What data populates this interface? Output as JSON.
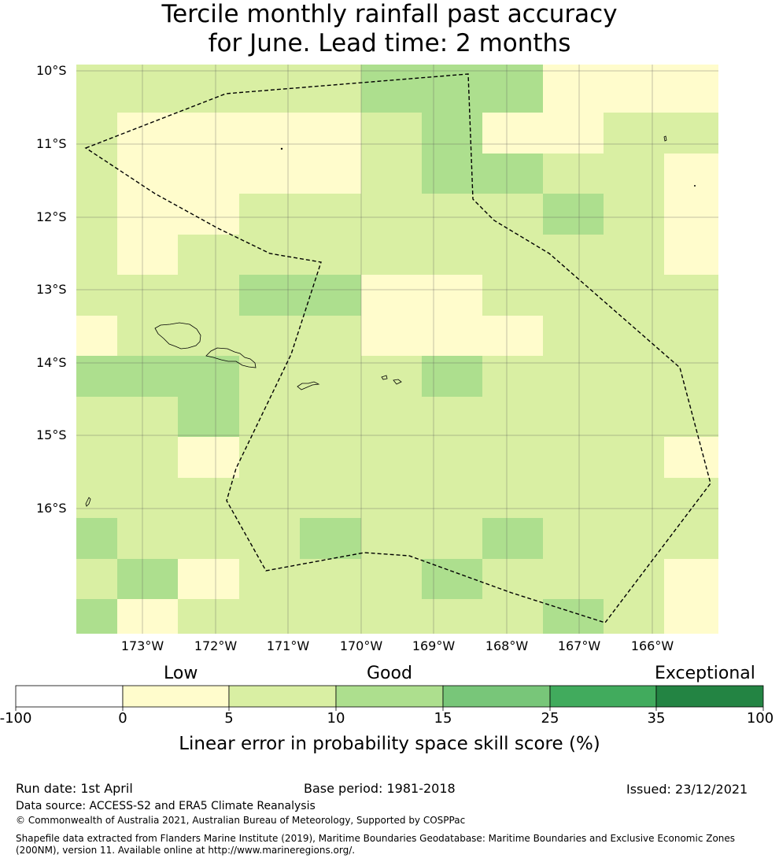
{
  "title": {
    "line1": "Tercile monthly rainfall past accuracy",
    "line2": "for June. Lead time: 2 months"
  },
  "map": {
    "lat_labels": [
      "10°S",
      "11°S",
      "12°S",
      "13°S",
      "14°S",
      "15°S",
      "16°S"
    ],
    "lon_labels": [
      "173°W",
      "172°W",
      "171°W",
      "170°W",
      "169°W",
      "168°W",
      "167°W",
      "166°W"
    ],
    "grid_columns": 11,
    "grid_rows": 14,
    "skill_classes": [
      "AAAAACCCBBB",
      "ABBBBACBBAA",
      "ABBBBACCAAB",
      "ABBAAAAACAB",
      "ABAAAAAAAAB",
      "AAACCBBAAAA",
      "BAAAABBBAAA",
      "CCCAAACAAAA",
      "AACAAAAAAAA",
      "AABAAAAAAAB",
      "AAAAAAAAAAA",
      "CAAACAACAAA",
      "ACBAAACAAAB",
      "CBAAAAAACAB"
    ],
    "class_key": {
      "B": "0 to 5",
      "A": "5 to 10",
      "C": "10 to 15"
    },
    "colors": {
      "B": "#fffccc",
      "A": "#d9efa3",
      "C": "#addf8e",
      "boundary": "#000000",
      "gridline": "#555555"
    }
  },
  "colorbar": {
    "ticks": [
      "-100",
      "0",
      "5",
      "10",
      "15",
      "25",
      "35",
      "100"
    ],
    "colors": [
      "#ffffff",
      "#fffccc",
      "#d9efa3",
      "#addf8e",
      "#78c679",
      "#41ab5d",
      "#238443"
    ],
    "category_labels": [
      "Low",
      "Good",
      "Exceptional"
    ],
    "title": "Linear error in probability space skill score (%)"
  },
  "footer": {
    "run_date": "Run date: 1st April",
    "base_period": "Base period: 1981-2018",
    "issued": "Issued: 23/12/2021",
    "data_source": "Data source: ACCESS-S2 and ERA5 Climate Reanalysis",
    "copyright": "© Commonwealth of Australia 2021, Australian Bureau of Meteorology, Supported by COSPPac",
    "shapefile_line1": "Shapefile data extracted from Flanders Marine Institute (2019), Maritime Boundaries Geodatabase: Maritime Boundaries and Exclusive Economic Zones",
    "shapefile_line2": "(200NM), version 11. Available online at http://www.marineregions.org/."
  }
}
